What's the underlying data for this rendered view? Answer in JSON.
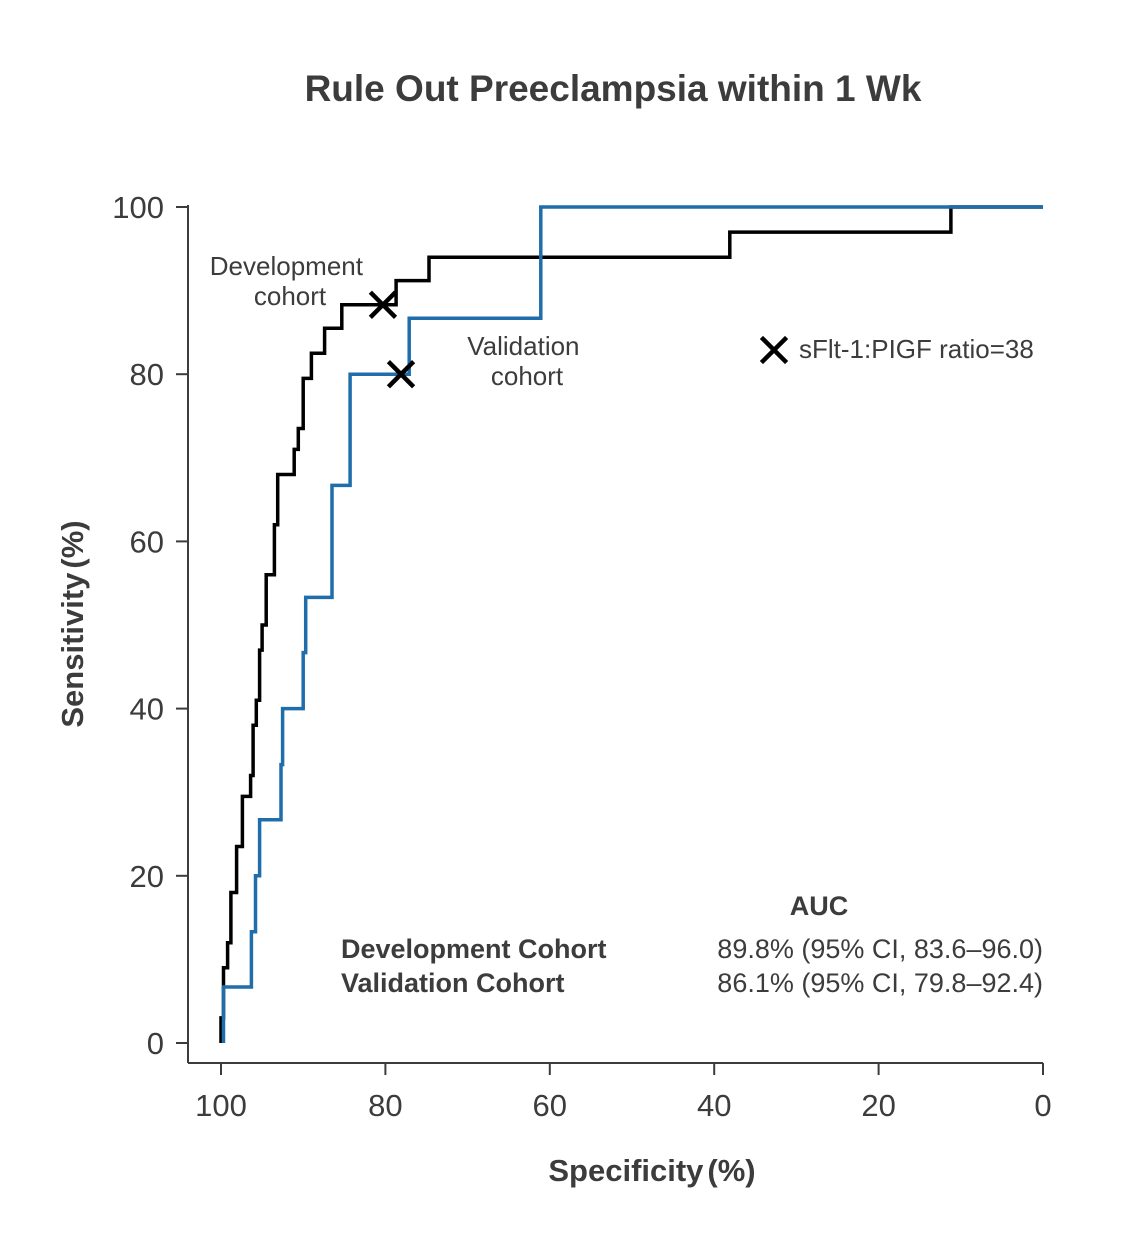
{
  "chart_data": {
    "type": "line",
    "title": "Rule Out Preeclampsia within 1 Wk",
    "xlabel": "Specificity",
    "xlabel_unit": "(%)",
    "ylabel": "Sensitivity",
    "ylabel_unit": "(%)",
    "xlim": [
      100,
      0
    ],
    "ylim": [
      0,
      100
    ],
    "x_ticks": [
      100,
      80,
      60,
      40,
      20,
      0
    ],
    "y_ticks": [
      0,
      20,
      40,
      60,
      80,
      100
    ],
    "series": [
      {
        "name": "Development cohort",
        "label_lines": [
          "Development",
          "cohort"
        ],
        "color": "#000000",
        "points": [
          [
            100,
            0
          ],
          [
            100,
            3
          ],
          [
            99.7,
            3
          ],
          [
            99.7,
            9
          ],
          [
            99.2,
            9
          ],
          [
            99.2,
            12
          ],
          [
            98.8,
            12
          ],
          [
            98.8,
            18
          ],
          [
            98.1,
            18
          ],
          [
            98.1,
            23.5
          ],
          [
            97.4,
            23.5
          ],
          [
            97.4,
            29.5
          ],
          [
            96.4,
            29.5
          ],
          [
            96.4,
            32
          ],
          [
            96.1,
            32
          ],
          [
            96.1,
            38
          ],
          [
            95.7,
            38
          ],
          [
            95.7,
            41
          ],
          [
            95.3,
            41
          ],
          [
            95.3,
            47
          ],
          [
            95,
            47
          ],
          [
            95,
            50
          ],
          [
            94.5,
            50
          ],
          [
            94.5,
            56
          ],
          [
            93.5,
            56
          ],
          [
            93.5,
            62
          ],
          [
            93.1,
            62
          ],
          [
            93.1,
            68
          ],
          [
            91.1,
            68
          ],
          [
            91.1,
            71
          ],
          [
            90.6,
            71
          ],
          [
            90.6,
            73.5
          ],
          [
            90,
            73.5
          ],
          [
            90,
            79.5
          ],
          [
            89,
            79.5
          ],
          [
            89,
            82.5
          ],
          [
            87.4,
            82.5
          ],
          [
            87.4,
            85.5
          ],
          [
            85.3,
            85.5
          ],
          [
            85.3,
            88.3
          ],
          [
            78.7,
            88.3
          ],
          [
            78.7,
            91.2
          ],
          [
            74.7,
            91.2
          ],
          [
            74.7,
            94
          ],
          [
            38.1,
            94
          ],
          [
            38.1,
            97
          ],
          [
            11.2,
            97
          ],
          [
            11.2,
            100
          ],
          [
            0,
            100
          ]
        ]
      },
      {
        "name": "Validation cohort",
        "label_lines": [
          "Validation",
          "cohort"
        ],
        "color": "#1f6eab",
        "points": [
          [
            99.7,
            0
          ],
          [
            99.7,
            6.7
          ],
          [
            96.3,
            6.7
          ],
          [
            96.3,
            13.3
          ],
          [
            95.8,
            13.3
          ],
          [
            95.8,
            20
          ],
          [
            95.3,
            20
          ],
          [
            95.3,
            26.7
          ],
          [
            92.7,
            26.7
          ],
          [
            92.7,
            33.3
          ],
          [
            92.5,
            33.3
          ],
          [
            92.5,
            40
          ],
          [
            90,
            40
          ],
          [
            90,
            46.7
          ],
          [
            89.7,
            46.7
          ],
          [
            89.7,
            53.3
          ],
          [
            86.5,
            53.3
          ],
          [
            86.5,
            66.7
          ],
          [
            84.3,
            66.7
          ],
          [
            84.3,
            80
          ],
          [
            77.1,
            80
          ],
          [
            77.1,
            86.7
          ],
          [
            61.1,
            86.7
          ],
          [
            61.1,
            100
          ],
          [
            0,
            100
          ]
        ]
      }
    ],
    "markers": [
      {
        "series": "Development cohort",
        "x": 80.3,
        "y": 88.3,
        "symbol": "x"
      },
      {
        "series": "Validation cohort",
        "x": 78.1,
        "y": 80,
        "symbol": "x"
      }
    ],
    "legend": {
      "symbol": "x",
      "label": "sFlt-1:PIGF ratio=38",
      "placement": "right"
    },
    "auc_table": {
      "header": "AUC",
      "rows": [
        {
          "name": "Development Cohort",
          "value": "89.8% (95% CI, 83.6–96.0)"
        },
        {
          "name": "Validation Cohort",
          "value": "86.1% (95% CI, 79.8–92.4)"
        }
      ]
    }
  }
}
